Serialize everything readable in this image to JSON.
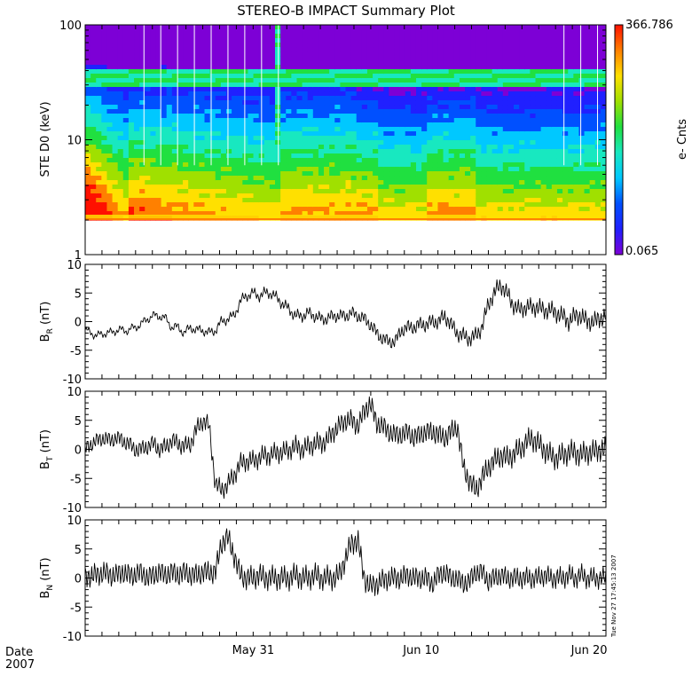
{
  "title": "STEREO-B IMPACT Summary Plot",
  "stamp": "Tue Nov 27 17:45:13 2007",
  "date_label": "Date",
  "year_label": "2007",
  "colors": {
    "axis": "#000000",
    "trace": "#000000",
    "white_gap": "#ffffff"
  },
  "chart_data": [
    {
      "type": "heatmap",
      "ylabel": "STE D0 (keV)",
      "ylog": true,
      "ylim": [
        1,
        100
      ],
      "y_ticks": [
        1,
        10,
        100
      ],
      "y_tick_labels": [
        "1",
        "10",
        "100"
      ],
      "data_floor_kev": 2,
      "colorbar": {
        "label": "e- Cnts",
        "max": "366.786",
        "min": "0.065",
        "colormap": [
          "#7d00d6",
          "#2020ff",
          "#0050ff",
          "#00c8ff",
          "#18e8c0",
          "#20e040",
          "#a0e000",
          "#ffe000",
          "#ff8000",
          "#ff1000"
        ]
      },
      "features": {
        "high_flux_band_kev": [
          31,
          38
        ],
        "vertical_stripe_date": "Jun 2",
        "white_gap_dates": [
          "May 24",
          "May 25",
          "May 26",
          "May 27",
          "May 28",
          "May 29",
          "May 30",
          "May 31",
          "Jun 1",
          "Jun 18",
          "Jun 19",
          "Jun 20"
        ]
      }
    },
    {
      "type": "line",
      "ylabel_main": "B",
      "ylabel_sub": "R",
      "ylabel_unit": "(nT)",
      "ylim": [
        -10,
        10
      ],
      "y_ticks": [
        -10,
        -5,
        0,
        5,
        10
      ],
      "series": [
        {
          "values": [
            -1.5,
            -2,
            -2.5,
            -2,
            -2,
            -1.5,
            -1.5,
            -1.5,
            -1,
            -0.5,
            0.5,
            1,
            1,
            0.5,
            -1,
            -1,
            -2,
            -1,
            -1.5,
            -1.5,
            -2,
            -1.5,
            0,
            0.5,
            1,
            3.5,
            4.5,
            5,
            4.5,
            5,
            5,
            4,
            3,
            2,
            1,
            1,
            1.5,
            1,
            0.5,
            0.5,
            1,
            1,
            1,
            1.5,
            1,
            0.5,
            -0.5,
            -2,
            -3,
            -3.5,
            -3.5,
            -1.5,
            -1,
            -1,
            -0.5,
            -0.5,
            0,
            0,
            1,
            -0.5,
            -2,
            -2.5,
            -3,
            -2.5,
            -1,
            3,
            5,
            6.5,
            5,
            3,
            2,
            2.5,
            2.5,
            2.5,
            2,
            2,
            1.5,
            1,
            0,
            1,
            1,
            0,
            0,
            0.5,
            1
          ]
        }
      ]
    },
    {
      "type": "line",
      "ylabel_main": "B",
      "ylabel_sub": "T",
      "ylabel_unit": "(nT)",
      "ylim": [
        -10,
        10
      ],
      "y_ticks": [
        -10,
        -5,
        0,
        5,
        10
      ],
      "series": [
        {
          "values": [
            0,
            1,
            1.5,
            2,
            1.5,
            2,
            1.5,
            1,
            0,
            0,
            0.5,
            1,
            0,
            0.5,
            1.5,
            1,
            0.5,
            1,
            3.5,
            5,
            4,
            -6,
            -7,
            -6,
            -4.5,
            -2.5,
            -2,
            -2,
            -1.5,
            -1,
            -1,
            -0.5,
            -0.5,
            0,
            0.5,
            0,
            0.5,
            1,
            1,
            1.5,
            3,
            4,
            5,
            5,
            4,
            6.5,
            8,
            4.5,
            4,
            3,
            2.5,
            2.5,
            3,
            2,
            2.5,
            3,
            3,
            2.5,
            2,
            3,
            4,
            -3,
            -5.5,
            -7,
            -5,
            -3,
            -2,
            -1,
            -1.5,
            -1,
            0,
            1,
            2,
            1,
            0,
            -1,
            -1.5,
            -1,
            -0.5,
            -0.5,
            -1,
            -0.5,
            -0.5,
            0,
            0
          ]
        }
      ]
    },
    {
      "type": "line",
      "ylabel_main": "B",
      "ylabel_sub": "N",
      "ylabel_unit": "(nT)",
      "ylim": [
        -10,
        10
      ],
      "y_ticks": [
        -10,
        -5,
        0,
        5,
        10
      ],
      "series": [
        {
          "values": [
            0,
            0.5,
            0.5,
            1,
            0.5,
            0.5,
            1,
            0.5,
            0.5,
            1,
            0,
            0.5,
            1,
            0.5,
            1,
            0.5,
            1,
            0.5,
            0.5,
            1,
            1,
            1,
            6,
            7,
            4,
            0.5,
            0,
            0,
            0.5,
            0,
            0,
            0,
            0,
            0,
            0.5,
            0,
            0,
            0.5,
            0,
            0,
            0,
            0.5,
            3.5,
            6,
            6.5,
            0,
            -1.5,
            -1,
            -0.5,
            0,
            0,
            0,
            0.5,
            0,
            0,
            0,
            -1,
            0.5,
            1,
            0,
            0,
            -1,
            -0.5,
            1,
            1,
            -0.5,
            0,
            0.5,
            0,
            0,
            0,
            0,
            0,
            0,
            0.5,
            0,
            0,
            0,
            0.5,
            0,
            0.5,
            0,
            0,
            0,
            0
          ]
        }
      ]
    }
  ],
  "x_axis": {
    "tick_labels": [
      "May 31",
      "Jun 10",
      "Jun 20"
    ],
    "start_date": "May 21",
    "end_date": "Jun 21"
  }
}
